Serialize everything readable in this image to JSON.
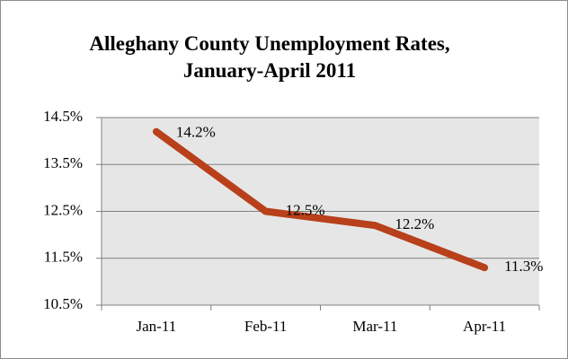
{
  "chart_data": {
    "type": "line",
    "title": "Alleghany County Unemployment Rates, January-April 2011",
    "categories": [
      "Jan-11",
      "Feb-11",
      "Mar-11",
      "Apr-11"
    ],
    "values": [
      14.2,
      12.5,
      12.2,
      11.3
    ],
    "value_labels": [
      "14.2%",
      "12.5%",
      "12.2%",
      "11.3%"
    ],
    "color": "#b8401a",
    "ylim": [
      10.5,
      14.5
    ],
    "yticks": [
      {
        "value": 10.5,
        "label": "10.5%"
      },
      {
        "value": 11.5,
        "label": "11.5%"
      },
      {
        "value": 12.5,
        "label": "12.5%"
      },
      {
        "value": 13.5,
        "label": "13.5%"
      },
      {
        "value": 14.5,
        "label": "14.5%"
      }
    ],
    "grid": true
  }
}
